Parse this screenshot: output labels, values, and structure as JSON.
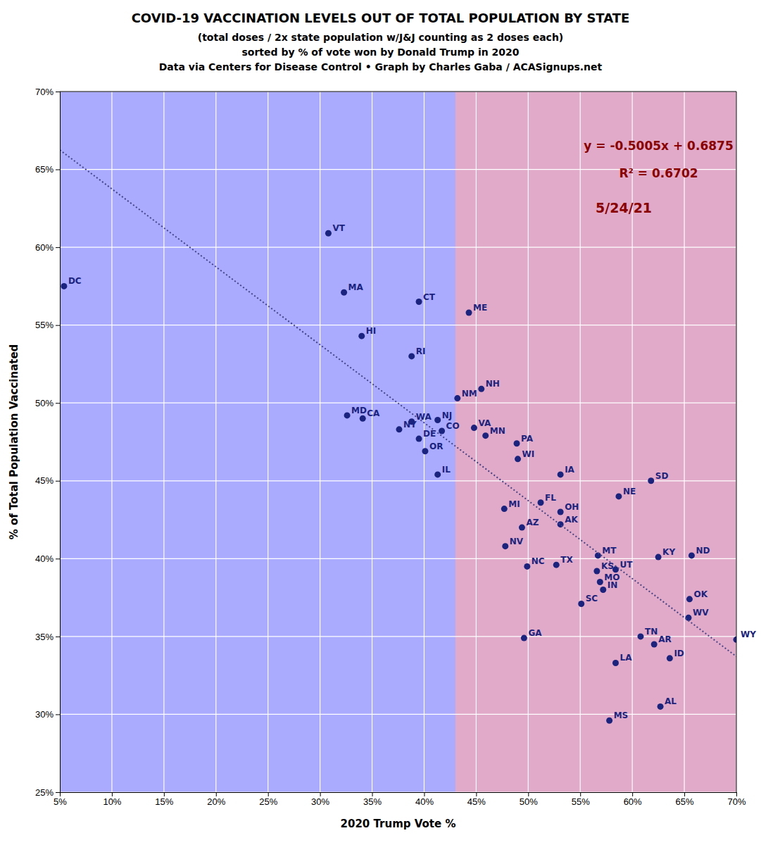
{
  "chart_data": {
    "type": "scatter",
    "title": "COVID-19 VACCINATION LEVELS OUT OF TOTAL POPULATION BY STATE",
    "subtitle": [
      "(total doses / 2x state population w/J&J counting as 2 doses each)",
      "sorted by % of vote won by Donald Trump in 2020",
      "Data via Centers for Disease Control • Graph by Charles Gaba / ACASignups.net"
    ],
    "x_label": "2020 Trump Vote %",
    "y_label": "% of Total Population Vaccinated",
    "xlim": [
      0.05,
      0.7
    ],
    "ylim": [
      0.25,
      0.7
    ],
    "xticks": [
      {
        "value": 0.05,
        "label": "5%"
      },
      {
        "value": 0.1,
        "label": "10%"
      },
      {
        "value": 0.15,
        "label": "15%"
      },
      {
        "value": 0.2,
        "label": "20%"
      },
      {
        "value": 0.25,
        "label": "25%"
      },
      {
        "value": 0.3,
        "label": "30%"
      },
      {
        "value": 0.35,
        "label": "35%"
      },
      {
        "value": 0.4,
        "label": "40%"
      },
      {
        "value": 0.45,
        "label": "45%"
      },
      {
        "value": 0.5,
        "label": "50%"
      },
      {
        "value": 0.55,
        "label": "55%"
      },
      {
        "value": 0.6,
        "label": "60%"
      },
      {
        "value": 0.65,
        "label": "65%"
      },
      {
        "value": 0.7,
        "label": "70%"
      }
    ],
    "yticks": [
      {
        "value": 0.25,
        "label": "25%"
      },
      {
        "value": 0.3,
        "label": "30%"
      },
      {
        "value": 0.35,
        "label": "35%"
      },
      {
        "value": 0.4,
        "label": "40%"
      },
      {
        "value": 0.45,
        "label": "45%"
      },
      {
        "value": 0.5,
        "label": "50%"
      },
      {
        "value": 0.55,
        "label": "55%"
      },
      {
        "value": 0.6,
        "label": "60%"
      },
      {
        "value": 0.65,
        "label": "65%"
      },
      {
        "value": 0.7,
        "label": "70%"
      }
    ],
    "grid": true,
    "bands": [
      {
        "x": [
          0.05,
          0.7
        ],
        "color": "#aaaaff"
      },
      {
        "x": [
          0.43,
          0.7
        ],
        "color": "#ffaaaa"
      }
    ],
    "series": [
      {
        "type": "scatter",
        "marker": "circle",
        "color": "#1a237e",
        "labels": [
          "DC",
          "VT",
          "MA",
          "HI",
          "CT",
          "RI",
          "MD",
          "CA",
          "NM",
          "WA",
          "NJ",
          "NY",
          "DE",
          "CO",
          "OR",
          "IL",
          "NH",
          "VA",
          "MN",
          "ME",
          "MI",
          "AZ",
          "NV",
          "NC",
          "FL",
          "OH",
          "AK",
          "TX",
          "PA",
          "WI",
          "IA",
          "GA",
          "SC",
          "MT",
          "KS",
          "MO",
          "IN",
          "NE",
          "UT",
          "LA",
          "TN",
          "AR",
          "SD",
          "KY",
          "ID",
          "AL",
          "MS",
          "OK",
          "WV",
          "ND",
          "WY"
        ],
        "x": [
          0.054,
          0.308,
          0.323,
          0.34,
          0.395,
          0.388,
          0.326,
          0.341,
          0.432,
          0.388,
          0.413,
          0.376,
          0.395,
          0.417,
          0.401,
          0.413,
          0.455,
          0.448,
          0.459,
          0.443,
          0.477,
          0.494,
          0.478,
          0.499,
          0.512,
          0.531,
          0.531,
          0.527,
          0.489,
          0.49,
          0.531,
          0.496,
          0.551,
          0.567,
          0.566,
          0.569,
          0.572,
          0.587,
          0.584,
          0.584,
          0.608,
          0.621,
          0.618,
          0.625,
          0.636,
          0.627,
          0.578,
          0.655,
          0.654,
          0.657,
          0.7
        ],
        "values": [
          0.575,
          0.609,
          0.571,
          0.543,
          0.565,
          0.53,
          0.492,
          0.49,
          0.503,
          0.488,
          0.489,
          0.483,
          0.477,
          0.482,
          0.469,
          0.454,
          0.509,
          0.484,
          0.479,
          0.558,
          0.432,
          0.42,
          0.408,
          0.395,
          0.436,
          0.43,
          0.422,
          0.396,
          0.474,
          0.464,
          0.454,
          0.349,
          0.371,
          0.402,
          0.392,
          0.385,
          0.38,
          0.44,
          0.393,
          0.333,
          0.35,
          0.345,
          0.45,
          0.401,
          0.336,
          0.305,
          0.296,
          0.374,
          0.362,
          0.402,
          0.348
        ]
      },
      {
        "type": "line",
        "line_style": "dotted",
        "color": "#444488",
        "x": [
          0.05,
          0.7
        ],
        "values": [
          0.662475,
          0.33715
        ]
      }
    ],
    "annotations": [
      {
        "text": "y = -0.5005x + 0.6875",
        "color": "#8b0000"
      },
      {
        "text": "R² = 0.6702",
        "color": "#8b0000"
      },
      {
        "text": "5/24/21",
        "color": "#8b0000"
      }
    ]
  }
}
